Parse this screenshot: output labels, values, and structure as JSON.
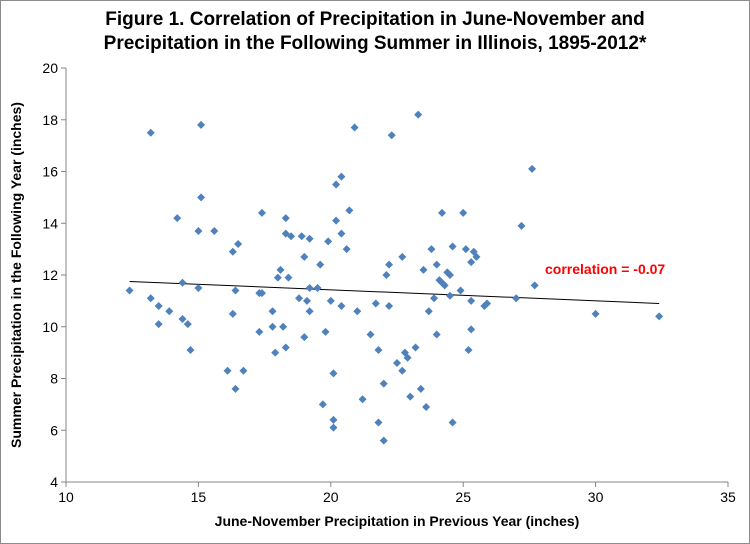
{
  "chart_data": {
    "type": "scatter",
    "title_line1": "Figure 1.  Correlation of Precipitation in June-November and",
    "title_line2": "Precipitation in the Following Summer in Illinois, 1895-2012*",
    "xlabel": "June-November Precipitation in Previous Year (inches)",
    "ylabel": "Summer Precipitation in the Following Year (inches)",
    "xlim": [
      10,
      35
    ],
    "ylim": [
      4,
      20
    ],
    "xticks": [
      "10",
      "15",
      "20",
      "25",
      "30",
      "35"
    ],
    "yticks": [
      "4",
      "6",
      "8",
      "10",
      "12",
      "14",
      "16",
      "18",
      "20"
    ],
    "grid": false,
    "marker_color": "#4f81bd",
    "trendline": {
      "x": [
        12.4,
        32.4
      ],
      "y": [
        11.75,
        10.9
      ]
    },
    "annotation": {
      "text": "correlation = -0.07",
      "color": "#ff0000"
    },
    "points": [
      [
        12.4,
        11.4
      ],
      [
        13.2,
        17.5
      ],
      [
        13.2,
        11.1
      ],
      [
        13.5,
        10.1
      ],
      [
        13.5,
        10.8
      ],
      [
        13.9,
        10.6
      ],
      [
        14.2,
        14.2
      ],
      [
        14.4,
        11.7
      ],
      [
        14.4,
        10.3
      ],
      [
        14.6,
        10.1
      ],
      [
        14.7,
        9.1
      ],
      [
        15.0,
        13.7
      ],
      [
        15.0,
        11.5
      ],
      [
        15.1,
        17.8
      ],
      [
        15.1,
        15.0
      ],
      [
        15.6,
        13.7
      ],
      [
        16.1,
        8.3
      ],
      [
        16.3,
        12.9
      ],
      [
        16.3,
        10.5
      ],
      [
        16.4,
        7.6
      ],
      [
        16.4,
        11.4
      ],
      [
        16.5,
        13.2
      ],
      [
        16.7,
        8.3
      ],
      [
        17.3,
        11.3
      ],
      [
        17.3,
        9.8
      ],
      [
        17.4,
        14.4
      ],
      [
        17.4,
        11.3
      ],
      [
        17.8,
        10.0
      ],
      [
        17.8,
        10.6
      ],
      [
        17.9,
        9.0
      ],
      [
        18.0,
        11.9
      ],
      [
        18.1,
        12.2
      ],
      [
        18.2,
        10.0
      ],
      [
        18.3,
        14.2
      ],
      [
        18.3,
        13.6
      ],
      [
        18.3,
        9.2
      ],
      [
        18.4,
        11.9
      ],
      [
        18.5,
        13.5
      ],
      [
        18.8,
        11.1
      ],
      [
        18.9,
        13.5
      ],
      [
        19.0,
        12.7
      ],
      [
        19.0,
        9.6
      ],
      [
        19.1,
        11.0
      ],
      [
        19.2,
        13.4
      ],
      [
        19.2,
        11.5
      ],
      [
        19.2,
        10.6
      ],
      [
        19.5,
        11.5
      ],
      [
        19.6,
        12.4
      ],
      [
        19.7,
        7.0
      ],
      [
        19.8,
        9.8
      ],
      [
        19.9,
        13.3
      ],
      [
        20.0,
        11.0
      ],
      [
        20.1,
        8.2
      ],
      [
        20.1,
        6.4
      ],
      [
        20.1,
        6.1
      ],
      [
        20.2,
        15.5
      ],
      [
        20.2,
        14.1
      ],
      [
        20.4,
        15.8
      ],
      [
        20.4,
        13.6
      ],
      [
        20.4,
        10.8
      ],
      [
        20.6,
        13.0
      ],
      [
        20.7,
        14.5
      ],
      [
        20.9,
        17.7
      ],
      [
        21.0,
        10.6
      ],
      [
        21.2,
        7.2
      ],
      [
        21.5,
        9.7
      ],
      [
        21.7,
        10.9
      ],
      [
        21.8,
        9.1
      ],
      [
        21.8,
        6.3
      ],
      [
        22.0,
        5.6
      ],
      [
        22.0,
        7.8
      ],
      [
        22.1,
        12.0
      ],
      [
        22.2,
        10.8
      ],
      [
        22.2,
        12.4
      ],
      [
        22.3,
        17.4
      ],
      [
        22.5,
        8.6
      ],
      [
        22.7,
        8.3
      ],
      [
        22.7,
        12.7
      ],
      [
        22.8,
        9.0
      ],
      [
        22.9,
        8.8
      ],
      [
        23.0,
        7.3
      ],
      [
        23.2,
        9.2
      ],
      [
        23.3,
        18.2
      ],
      [
        23.4,
        7.6
      ],
      [
        23.5,
        12.2
      ],
      [
        23.6,
        6.9
      ],
      [
        23.7,
        10.6
      ],
      [
        23.8,
        13.0
      ],
      [
        23.9,
        11.1
      ],
      [
        24.0,
        9.7
      ],
      [
        24.0,
        12.4
      ],
      [
        24.1,
        11.8
      ],
      [
        24.2,
        11.7
      ],
      [
        24.2,
        14.4
      ],
      [
        24.3,
        11.6
      ],
      [
        24.4,
        12.1
      ],
      [
        24.5,
        12.0
      ],
      [
        24.5,
        11.2
      ],
      [
        24.6,
        6.3
      ],
      [
        24.6,
        13.1
      ],
      [
        24.9,
        11.4
      ],
      [
        25.0,
        14.4
      ],
      [
        25.1,
        13.0
      ],
      [
        25.2,
        9.1
      ],
      [
        25.3,
        11.0
      ],
      [
        25.3,
        9.9
      ],
      [
        25.3,
        12.5
      ],
      [
        25.4,
        12.9
      ],
      [
        25.5,
        12.7
      ],
      [
        25.8,
        10.8
      ],
      [
        25.9,
        10.9
      ],
      [
        27.0,
        11.1
      ],
      [
        27.2,
        13.9
      ],
      [
        27.6,
        16.1
      ],
      [
        27.7,
        11.6
      ],
      [
        30.0,
        10.5
      ],
      [
        32.4,
        10.4
      ]
    ]
  }
}
